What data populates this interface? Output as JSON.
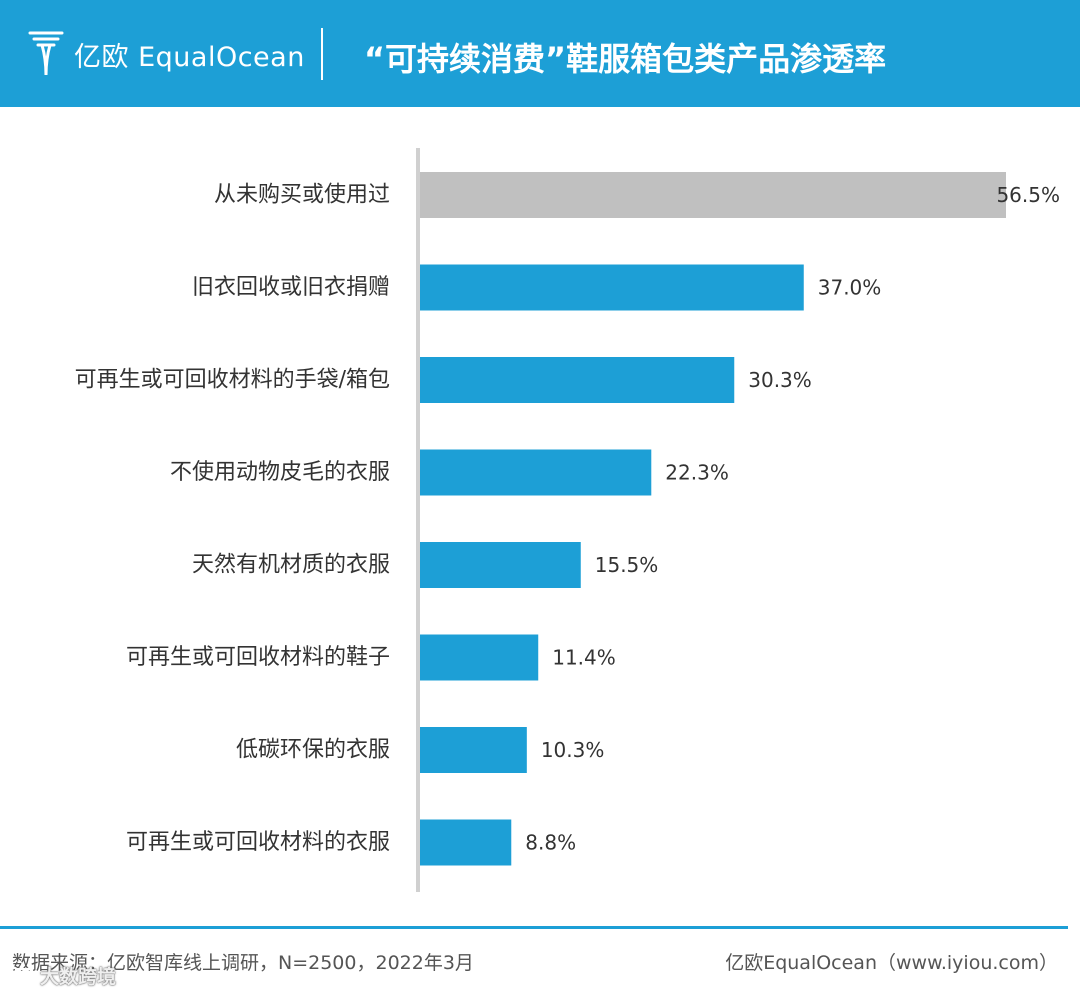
{
  "header": {
    "logo_text": "亿欧 EqualOcean",
    "title": "“可持续消费”鞋服箱包类产品渗透率"
  },
  "chart_data": {
    "type": "bar",
    "orientation": "horizontal",
    "title": "“可持续消费”鞋服箱包类产品渗透率",
    "categories": [
      "从未购买或使用过",
      "旧衣回收或旧衣捐赠",
      "可再生或可回收材料的手袋/箱包",
      "不使用动物皮毛的衣服",
      "天然有机材质的衣服",
      "可再生或可回收材料的鞋子",
      "低碳环保的衣服",
      "可再生或可回收材料的衣服"
    ],
    "values": [
      56.5,
      37.0,
      30.3,
      22.3,
      15.5,
      11.4,
      10.3,
      8.8
    ],
    "value_labels": [
      "56.5%",
      "37.0%",
      "30.3%",
      "22.3%",
      "15.5%",
      "11.4%",
      "10.3%",
      "8.8%"
    ],
    "unit": "%",
    "xlim": [
      0,
      56.5
    ],
    "grid": false,
    "legend": "none",
    "colors": {
      "highlight": "#c0c0c0",
      "bar": "#1d9fd6",
      "axis": "#d0d0d0"
    }
  },
  "footer": {
    "source": "数据来源：亿欧智库线上调研，N=2500，2022年3月",
    "credit": "亿欧EqualOcean（www.iyiou.com）"
  },
  "watermark": {
    "text": "大数跨境",
    "icon": "chat-bubble-icon"
  }
}
